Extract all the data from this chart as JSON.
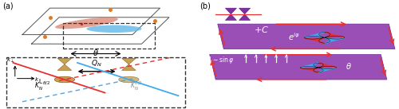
{
  "fig_width": 5.0,
  "fig_height": 1.37,
  "dpi": 100,
  "bg_color": "#ffffff",
  "purple_fill": "#9040b0",
  "purple_edge": "#6a2090",
  "red_arrow": "#e83030",
  "red_line": "#e83030",
  "blue_line": "#40aaee",
  "tan_fill": "#c8a055",
  "tan_edge": "#8B6010",
  "orange_dot": "#e07820",
  "cone_purple": "#8030a0",
  "cone_edge": "#5a1880",
  "dwave_red": "#e83030",
  "dwave_blue": "#40aaee",
  "white": "#ffffff",
  "black": "#000000",
  "gray": "#888888"
}
